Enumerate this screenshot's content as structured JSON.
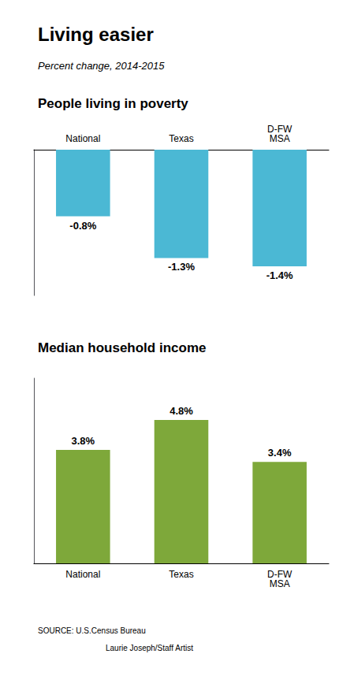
{
  "title": "Living easier",
  "subtitle": "Percent change, 2014-2015",
  "annotations": [
    "SOURCE: U.S.Census Bureau",
    "Laurie Joseph/Staff Artist"
  ],
  "chart_data": [
    {
      "type": "bar",
      "title": "People living in poverty",
      "categories": [
        "National",
        "Texas",
        "D-FW\nMSA"
      ],
      "values": [
        -0.8,
        -1.3,
        -1.4
      ],
      "value_labels": [
        "-0.8%",
        "-1.3%",
        "-1.4%"
      ],
      "color": "#4bb8d4",
      "ylim": [
        -1.75,
        0
      ],
      "data_labels": true,
      "grid": false,
      "tick_labels": "x"
    },
    {
      "type": "bar",
      "title": "Median household income",
      "categories": [
        "National",
        "Texas",
        "D-FW\nMSA"
      ],
      "values": [
        3.8,
        4.8,
        3.4
      ],
      "value_labels": [
        "3.8%",
        "4.8%",
        "3.4%"
      ],
      "color": "#7ea83a",
      "ylim": [
        0,
        6.2
      ],
      "data_labels": true,
      "grid": false,
      "tick_labels": "x"
    }
  ]
}
